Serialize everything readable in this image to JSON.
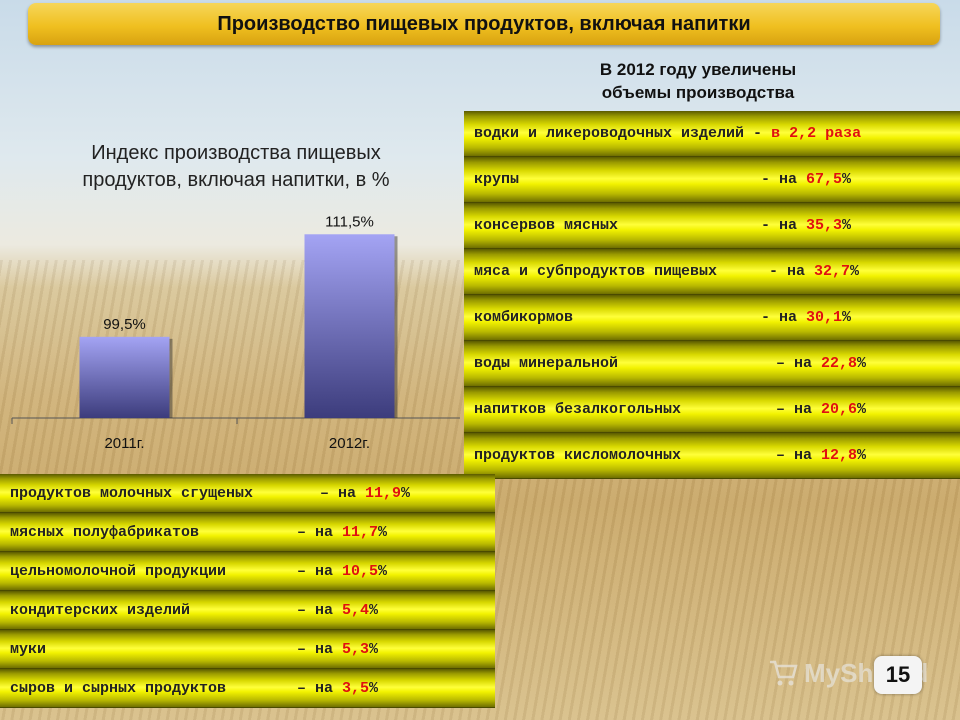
{
  "title": "Производство пищевых продуктов, включая напитки",
  "increase_heading": {
    "line1": "В 2012 году увеличены",
    "line2": "объемы производства"
  },
  "chart_title": {
    "line1": "Индекс производства пищевых",
    "line2": "продуктов, включая напитки, в %"
  },
  "chart_data": {
    "type": "bar",
    "categories": [
      "2011г.",
      "2012г."
    ],
    "values": [
      99.5,
      111.5
    ],
    "data_labels": [
      "99,5%",
      "111,5%"
    ],
    "title": "Индекс производства пищевых продуктов, включая напитки, в %",
    "ylim": [
      90,
      112
    ],
    "colors": {
      "bar_top": "#a4a4f4",
      "bar_bottom": "#3c3c7c"
    }
  },
  "right_items": [
    {
      "name": "водки и ликероводочных изделий",
      "sep": " - ",
      "prefix": "в ",
      "value": "2,2 раза",
      "suffix": ""
    },
    {
      "name": "крупы",
      "sep": "",
      "prefix": "- на ",
      "value": "67,5",
      "suffix": "%"
    },
    {
      "name": "консервов мясных",
      "sep": "",
      "prefix": "- на ",
      "value": "35,3",
      "suffix": "%"
    },
    {
      "name": "мяса и субпродуктов пищевых",
      "sep": "",
      "prefix": " - на ",
      "value": "32,7",
      "suffix": "%"
    },
    {
      "name": "комбикормов",
      "sep": "",
      "prefix": "- на ",
      "value": "30,1",
      "suffix": "%"
    },
    {
      "name": "воды минеральной",
      "sep": "",
      "prefix": "– на ",
      "value": "22,8",
      "suffix": "%"
    },
    {
      "name": "напитков безалкогольных",
      "sep": "",
      "prefix": "– на ",
      "value": "20,6",
      "suffix": "%"
    },
    {
      "name": "продуктов кисломолочных",
      "sep": "",
      "prefix": "– на ",
      "value": "12,8",
      "suffix": "%"
    }
  ],
  "left_items": [
    {
      "name": "продуктов молочных сгущеных",
      "prefix": "– на ",
      "value": "11,9",
      "suffix": "%"
    },
    {
      "name": "мясных полуфабрикатов",
      "prefix": "– на ",
      "value": "11,7",
      "suffix": "%"
    },
    {
      "name": "цельномолочной продукции",
      "prefix": "– на ",
      "value": "10,5",
      "suffix": "%"
    },
    {
      "name": "кондитерских изделий",
      "prefix": "– на ",
      "value": "5,4",
      "suffix": "%"
    },
    {
      "name": "муки",
      "prefix": "– на ",
      "value": "5,3",
      "suffix": "%"
    },
    {
      "name": "сыров и сырных продуктов",
      "prefix": "– на ",
      "value": "3,5",
      "suffix": "%"
    }
  ],
  "page_number": "15",
  "watermark": "MyShared",
  "colors": {
    "highlight": "#e01010",
    "title_bar": "#f0c020",
    "stripe": "#f2f200"
  }
}
